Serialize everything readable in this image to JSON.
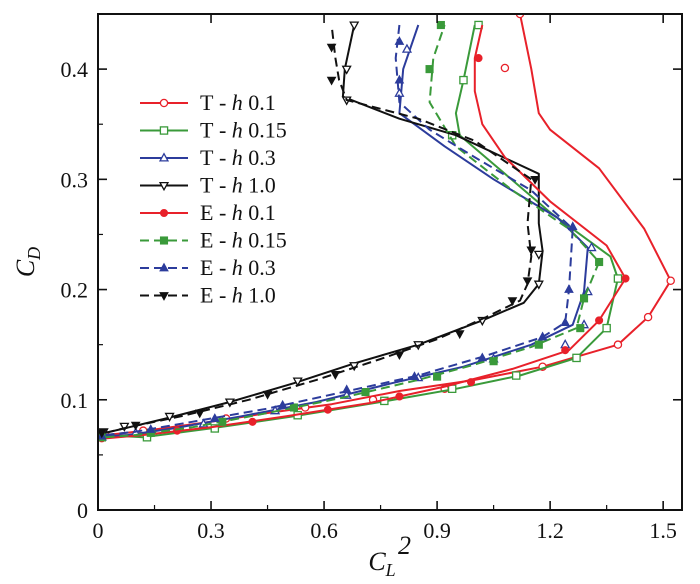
{
  "chart_data": {
    "type": "line",
    "title": "",
    "xlabel": {
      "main": "C",
      "sub": "L",
      "sup": "2"
    },
    "ylabel": {
      "main": "C",
      "sub": "D"
    },
    "xlim": [
      0,
      1.55
    ],
    "ylim": [
      0,
      0.45
    ],
    "xticks": [
      0,
      0.3,
      0.6,
      0.9,
      1.2,
      1.5
    ],
    "xtick_labels": [
      "0",
      "0.3",
      "0.6",
      "0.9",
      "1.2",
      "1.5"
    ],
    "yticks": [
      0,
      0.1,
      0.2,
      0.3,
      0.4
    ],
    "ytick_labels": [
      "0",
      "0.1",
      "0.2",
      "0.3",
      "0.4"
    ],
    "grid": false,
    "legend_position": "upper-left",
    "series": [
      {
        "prefix": "T - ",
        "h": "h",
        "value": "0.1",
        "color": "#e8212a",
        "dash": "solid",
        "marker": "circle-open",
        "points": [
          [
            0.02,
            0.068
          ],
          [
            0.05,
            0.069
          ],
          [
            0.15,
            0.073
          ],
          [
            0.3,
            0.08
          ],
          [
            0.45,
            0.088
          ],
          [
            0.62,
            0.096
          ],
          [
            0.8,
            0.108
          ],
          [
            1.0,
            0.118
          ],
          [
            1.18,
            0.13
          ],
          [
            1.38,
            0.15
          ],
          [
            1.46,
            0.175
          ],
          [
            1.52,
            0.208
          ],
          [
            1.45,
            0.255
          ],
          [
            1.33,
            0.31
          ],
          [
            1.2,
            0.345
          ],
          [
            1.17,
            0.36
          ],
          [
            1.15,
            0.4
          ],
          [
            1.12,
            0.45
          ]
        ],
        "markers": [
          [
            0.02,
            0.068
          ],
          [
            0.12,
            0.072
          ],
          [
            0.34,
            0.083
          ],
          [
            0.55,
            0.093
          ],
          [
            0.73,
            0.1
          ],
          [
            0.92,
            0.11
          ],
          [
            1.18,
            0.13
          ],
          [
            1.38,
            0.15
          ],
          [
            1.46,
            0.175
          ],
          [
            1.52,
            0.208
          ],
          [
            1.08,
            0.401
          ],
          [
            1.12,
            0.45
          ]
        ]
      },
      {
        "prefix": "T - ",
        "h": "h",
        "value": "0.15",
        "color": "#3a9a3a",
        "dash": "solid",
        "marker": "square-open",
        "points": [
          [
            0.02,
            0.068
          ],
          [
            0.12,
            0.066
          ],
          [
            0.3,
            0.074
          ],
          [
            0.52,
            0.085
          ],
          [
            0.75,
            0.098
          ],
          [
            0.95,
            0.11
          ],
          [
            1.12,
            0.122
          ],
          [
            1.27,
            0.138
          ],
          [
            1.35,
            0.165
          ],
          [
            1.38,
            0.21
          ],
          [
            1.36,
            0.23
          ],
          [
            1.2,
            0.27
          ],
          [
            1.08,
            0.305
          ],
          [
            0.96,
            0.34
          ],
          [
            0.95,
            0.36
          ],
          [
            0.97,
            0.39
          ],
          [
            1.0,
            0.44
          ]
        ],
        "markers": [
          [
            0.01,
            0.066
          ],
          [
            0.13,
            0.066
          ],
          [
            0.31,
            0.074
          ],
          [
            0.53,
            0.086
          ],
          [
            0.76,
            0.099
          ],
          [
            0.94,
            0.11
          ],
          [
            1.11,
            0.122
          ],
          [
            1.27,
            0.138
          ],
          [
            1.35,
            0.165
          ],
          [
            1.38,
            0.21
          ],
          [
            0.94,
            0.34
          ],
          [
            0.97,
            0.39
          ],
          [
            1.01,
            0.44
          ]
        ]
      },
      {
        "prefix": "T - ",
        "h": "h",
        "value": "0.3",
        "color": "#2c3c9c",
        "dash": "solid",
        "marker": "triangle-up-open",
        "points": [
          [
            0.02,
            0.067
          ],
          [
            0.08,
            0.068
          ],
          [
            0.2,
            0.074
          ],
          [
            0.38,
            0.085
          ],
          [
            0.58,
            0.098
          ],
          [
            0.78,
            0.115
          ],
          [
            0.97,
            0.13
          ],
          [
            1.15,
            0.15
          ],
          [
            1.26,
            0.168
          ],
          [
            1.29,
            0.198
          ],
          [
            1.3,
            0.238
          ],
          [
            1.22,
            0.265
          ],
          [
            1.05,
            0.3
          ],
          [
            0.92,
            0.33
          ],
          [
            0.8,
            0.36
          ],
          [
            0.81,
            0.4
          ],
          [
            0.85,
            0.44
          ]
        ],
        "markers": [
          [
            0.01,
            0.066
          ],
          [
            0.1,
            0.07
          ],
          [
            0.28,
            0.078
          ],
          [
            0.47,
            0.09
          ],
          [
            0.66,
            0.104
          ],
          [
            0.85,
            0.12
          ],
          [
            1.05,
            0.137
          ],
          [
            1.24,
            0.15
          ],
          [
            1.29,
            0.168
          ],
          [
            1.3,
            0.198
          ],
          [
            1.31,
            0.238
          ],
          [
            0.8,
            0.378
          ],
          [
            0.82,
            0.418
          ]
        ]
      },
      {
        "prefix": "T - ",
        "h": "h",
        "value": "1.0",
        "color": "#111111",
        "dash": "solid",
        "marker": "triangle-down-open",
        "points": [
          [
            0.02,
            0.07
          ],
          [
            0.07,
            0.074
          ],
          [
            0.18,
            0.083
          ],
          [
            0.35,
            0.098
          ],
          [
            0.52,
            0.115
          ],
          [
            0.68,
            0.133
          ],
          [
            0.85,
            0.15
          ],
          [
            1.02,
            0.172
          ],
          [
            1.13,
            0.188
          ],
          [
            1.17,
            0.205
          ],
          [
            1.18,
            0.235
          ],
          [
            1.17,
            0.26
          ],
          [
            1.17,
            0.305
          ],
          [
            0.95,
            0.34
          ],
          [
            0.8,
            0.355
          ],
          [
            0.65,
            0.375
          ],
          [
            0.655,
            0.4
          ],
          [
            0.68,
            0.44
          ]
        ],
        "markers": [
          [
            0.015,
            0.071
          ],
          [
            0.07,
            0.076
          ],
          [
            0.19,
            0.085
          ],
          [
            0.35,
            0.098
          ],
          [
            0.53,
            0.117
          ],
          [
            0.68,
            0.131
          ],
          [
            0.85,
            0.15
          ],
          [
            1.02,
            0.172
          ],
          [
            1.17,
            0.205
          ],
          [
            1.17,
            0.232
          ],
          [
            0.66,
            0.372
          ],
          [
            0.66,
            0.4
          ],
          [
            0.68,
            0.44
          ]
        ]
      },
      {
        "prefix": "E - ",
        "h": "h",
        "value": "0.1",
        "color": "#e8212a",
        "dash": "solid",
        "marker": "circle-filled",
        "points": [
          [
            0.02,
            0.065
          ],
          [
            0.12,
            0.068
          ],
          [
            0.3,
            0.075
          ],
          [
            0.5,
            0.085
          ],
          [
            0.72,
            0.097
          ],
          [
            0.92,
            0.112
          ],
          [
            1.1,
            0.128
          ],
          [
            1.25,
            0.145
          ],
          [
            1.33,
            0.172
          ],
          [
            1.4,
            0.21
          ],
          [
            1.35,
            0.24
          ],
          [
            1.2,
            0.28
          ],
          [
            1.08,
            0.32
          ],
          [
            1.02,
            0.35
          ],
          [
            1.0,
            0.38
          ],
          [
            1.0,
            0.41
          ],
          [
            1.02,
            0.44
          ]
        ],
        "markers": [
          [
            0.01,
            0.065
          ],
          [
            0.21,
            0.072
          ],
          [
            0.41,
            0.08
          ],
          [
            0.61,
            0.091
          ],
          [
            0.8,
            0.103
          ],
          [
            0.99,
            0.116
          ],
          [
            1.24,
            0.145
          ],
          [
            1.33,
            0.172
          ],
          [
            1.4,
            0.21
          ],
          [
            1.01,
            0.41
          ]
        ]
      },
      {
        "prefix": "E - ",
        "h": "h",
        "value": "0.15",
        "color": "#3a9a3a",
        "dash": "dashed",
        "marker": "square-filled",
        "points": [
          [
            0.02,
            0.066
          ],
          [
            0.1,
            0.068
          ],
          [
            0.25,
            0.075
          ],
          [
            0.45,
            0.088
          ],
          [
            0.65,
            0.102
          ],
          [
            0.85,
            0.118
          ],
          [
            1.0,
            0.132
          ],
          [
            1.15,
            0.148
          ],
          [
            1.27,
            0.165
          ],
          [
            1.29,
            0.192
          ],
          [
            1.33,
            0.225
          ],
          [
            1.25,
            0.255
          ],
          [
            1.1,
            0.29
          ],
          [
            0.95,
            0.33
          ],
          [
            0.88,
            0.37
          ],
          [
            0.89,
            0.41
          ],
          [
            0.92,
            0.44
          ]
        ],
        "markers": [
          [
            0.01,
            0.066
          ],
          [
            0.14,
            0.07
          ],
          [
            0.33,
            0.08
          ],
          [
            0.52,
            0.093
          ],
          [
            0.71,
            0.107
          ],
          [
            0.9,
            0.121
          ],
          [
            1.05,
            0.135
          ],
          [
            1.17,
            0.15
          ],
          [
            1.28,
            0.165
          ],
          [
            1.29,
            0.192
          ],
          [
            1.33,
            0.225
          ],
          [
            0.88,
            0.4
          ],
          [
            0.91,
            0.44
          ]
        ]
      },
      {
        "prefix": "E - ",
        "h": "h",
        "value": "0.3",
        "color": "#2c3c9c",
        "dash": "dashed",
        "marker": "triangle-up-filled",
        "points": [
          [
            0.02,
            0.068
          ],
          [
            0.1,
            0.071
          ],
          [
            0.25,
            0.08
          ],
          [
            0.45,
            0.092
          ],
          [
            0.65,
            0.107
          ],
          [
            0.85,
            0.122
          ],
          [
            1.03,
            0.14
          ],
          [
            1.18,
            0.157
          ],
          [
            1.24,
            0.17
          ],
          [
            1.25,
            0.2
          ],
          [
            1.26,
            0.255
          ],
          [
            1.15,
            0.29
          ],
          [
            1.0,
            0.32
          ],
          [
            0.88,
            0.345
          ],
          [
            0.8,
            0.37
          ],
          [
            0.79,
            0.41
          ],
          [
            0.8,
            0.44
          ]
        ],
        "markers": [
          [
            0.01,
            0.067
          ],
          [
            0.14,
            0.073
          ],
          [
            0.31,
            0.083
          ],
          [
            0.49,
            0.095
          ],
          [
            0.66,
            0.109
          ],
          [
            0.84,
            0.121
          ],
          [
            1.02,
            0.138
          ],
          [
            1.18,
            0.157
          ],
          [
            1.24,
            0.17
          ],
          [
            1.25,
            0.2
          ],
          [
            1.26,
            0.257
          ],
          [
            0.8,
            0.39
          ],
          [
            0.8,
            0.425
          ]
        ]
      },
      {
        "prefix": "E - ",
        "h": "h",
        "value": "1.0",
        "color": "#111111",
        "dash": "dashed",
        "marker": "triangle-down-filled",
        "points": [
          [
            0.02,
            0.07
          ],
          [
            0.08,
            0.075
          ],
          [
            0.22,
            0.085
          ],
          [
            0.4,
            0.1
          ],
          [
            0.58,
            0.118
          ],
          [
            0.75,
            0.137
          ],
          [
            0.9,
            0.155
          ],
          [
            1.03,
            0.175
          ],
          [
            1.12,
            0.19
          ],
          [
            1.14,
            0.205
          ],
          [
            1.15,
            0.23
          ],
          [
            1.14,
            0.26
          ],
          [
            1.15,
            0.3
          ],
          [
            1.0,
            0.335
          ],
          [
            0.85,
            0.355
          ],
          [
            0.66,
            0.372
          ],
          [
            0.64,
            0.39
          ],
          [
            0.63,
            0.41
          ],
          [
            0.62,
            0.44
          ]
        ],
        "markers": [
          [
            0.01,
            0.07
          ],
          [
            0.1,
            0.077
          ],
          [
            0.27,
            0.088
          ],
          [
            0.45,
            0.105
          ],
          [
            0.63,
            0.123
          ],
          [
            0.8,
            0.141
          ],
          [
            0.96,
            0.16
          ],
          [
            1.1,
            0.19
          ],
          [
            1.14,
            0.208
          ],
          [
            1.15,
            0.236
          ],
          [
            1.16,
            0.3
          ],
          [
            0.62,
            0.39
          ],
          [
            0.62,
            0.42
          ]
        ]
      }
    ]
  }
}
